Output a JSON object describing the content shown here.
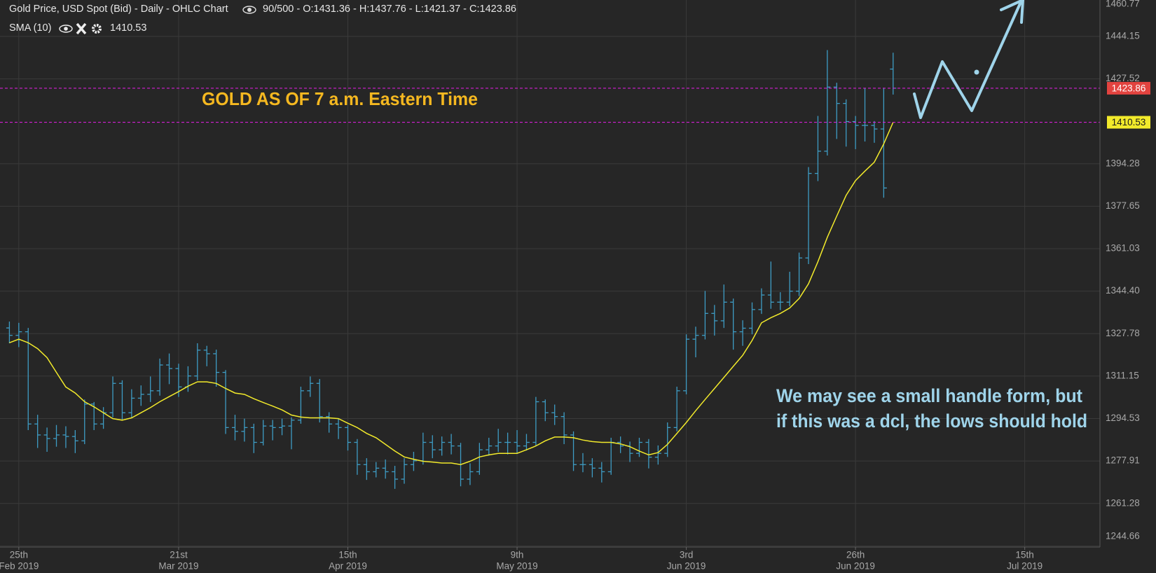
{
  "chart_data": {
    "type": "ohlc",
    "title": "Gold Price, USD Spot (Bid) - Daily - OHLC Chart",
    "info": "90/500 - O:1431.36 - H:1437.76 - L:1421.37 - C:1423.86",
    "color": "#3e9cc4",
    "open": [
      1330.0,
      1327.1,
      1328.5,
      1292.4,
      1288.1,
      1286.7,
      1288.1,
      1287.5,
      1285.8,
      1300.2,
      1292.4,
      1296.8,
      1308.3,
      1296.8,
      1302.5,
      1304.0,
      1305.4,
      1315.5,
      1314.1,
      1306.9,
      1311.2,
      1321.3,
      1319.9,
      1312.6,
      1291.0,
      1289.5,
      1291.0,
      1285.2,
      1291.6,
      1291.0,
      1291.6,
      1293.9,
      1305.4,
      1308.3,
      1295.3,
      1292.4,
      1291.0,
      1285.2,
      1276.5,
      1273.7,
      1275.1,
      1273.7,
      1270.8,
      1276.5,
      1278.0,
      1285.2,
      1282.3,
      1285.2,
      1283.8,
      1270.8,
      1273.7,
      1282.3,
      1283.8,
      1285.2,
      1285.2,
      1283.8,
      1285.2,
      1301.1,
      1296.8,
      1295.3,
      1288.1,
      1276.5,
      1276.5,
      1275.1,
      1273.7,
      1285.2,
      1283.8,
      1280.9,
      1285.2,
      1279.4,
      1280.9,
      1291.0,
      1305.4,
      1325.6,
      1327.1,
      1335.7,
      1332.8,
      1340.1,
      1328.5,
      1329.9,
      1337.2,
      1342.9,
      1340.1,
      1340.1,
      1344.4,
      1357.4,
      1390.5,
      1399.2,
      1424.3,
      1417.9,
      1410.8,
      1409.3,
      1409.3,
      1407.9,
      1431.36
    ],
    "high": [
      1332.5,
      1332.0,
      1330.0,
      1296.0,
      1291.0,
      1292.0,
      1291.5,
      1290.0,
      1302.0,
      1301.0,
      1299.0,
      1311.0,
      1309.5,
      1306.0,
      1307.5,
      1311.0,
      1318.0,
      1320.0,
      1316.0,
      1315.0,
      1324.0,
      1323.0,
      1321.5,
      1313.5,
      1296.0,
      1294.5,
      1292.5,
      1294.0,
      1294.0,
      1294.5,
      1295.0,
      1307.0,
      1311.0,
      1310.0,
      1297.0,
      1294.5,
      1292.0,
      1286.5,
      1279.0,
      1277.5,
      1278.5,
      1276.0,
      1279.0,
      1281.5,
      1289.0,
      1288.0,
      1287.5,
      1288.5,
      1285.0,
      1277.0,
      1285.0,
      1287.0,
      1290.5,
      1289.0,
      1290.0,
      1288.5,
      1303.0,
      1302.0,
      1300.0,
      1297.0,
      1289.5,
      1281.0,
      1279.0,
      1277.5,
      1287.0,
      1287.5,
      1285.5,
      1287.0,
      1286.5,
      1284.0,
      1293.0,
      1307.0,
      1327.5,
      1330.5,
      1344.5,
      1339.0,
      1347.0,
      1341.5,
      1333.0,
      1340.0,
      1345.5,
      1356.0,
      1344.0,
      1352.0,
      1359.5,
      1393.0,
      1413.0,
      1438.8,
      1426.0,
      1419.5,
      1413.0,
      1424.0,
      1411.0,
      1424.0,
      1437.76
    ],
    "low": [
      1324.0,
      1322.5,
      1290.0,
      1283.0,
      1281.5,
      1283.5,
      1283.0,
      1281.0,
      1284.5,
      1290.0,
      1290.5,
      1295.0,
      1294.0,
      1295.0,
      1299.5,
      1301.0,
      1303.5,
      1308.0,
      1303.0,
      1305.0,
      1309.5,
      1315.0,
      1307.0,
      1288.5,
      1286.0,
      1285.5,
      1281.0,
      1284.0,
      1286.0,
      1288.0,
      1282.5,
      1292.5,
      1303.0,
      1293.0,
      1289.0,
      1286.5,
      1282.0,
      1272.5,
      1270.5,
      1271.5,
      1271.0,
      1267.0,
      1269.0,
      1274.0,
      1276.5,
      1279.0,
      1280.0,
      1280.5,
      1268.0,
      1268.5,
      1272.5,
      1280.0,
      1281.5,
      1280.5,
      1281.0,
      1282.0,
      1284.0,
      1293.5,
      1292.0,
      1284.5,
      1274.0,
      1273.5,
      1271.5,
      1269.5,
      1272.5,
      1281.0,
      1277.5,
      1279.5,
      1275.0,
      1276.5,
      1279.5,
      1289.5,
      1304.0,
      1318.5,
      1325.5,
      1327.0,
      1330.0,
      1321.5,
      1323.0,
      1327.5,
      1335.5,
      1337.5,
      1337.0,
      1338.5,
      1342.5,
      1355.0,
      1387.5,
      1397.5,
      1404.0,
      1401.0,
      1400.0,
      1403.0,
      1402.5,
      1381.0,
      1421.37
    ],
    "close": [
      1327.1,
      1328.5,
      1292.4,
      1288.1,
      1286.7,
      1288.1,
      1287.5,
      1285.8,
      1300.2,
      1292.4,
      1296.8,
      1308.3,
      1296.8,
      1302.5,
      1304.0,
      1305.4,
      1315.5,
      1314.1,
      1306.9,
      1311.2,
      1321.3,
      1319.9,
      1312.6,
      1291.0,
      1289.5,
      1291.0,
      1285.2,
      1291.6,
      1291.0,
      1291.6,
      1293.9,
      1305.4,
      1308.3,
      1295.3,
      1292.4,
      1291.0,
      1285.2,
      1276.5,
      1273.7,
      1275.1,
      1273.7,
      1270.8,
      1276.5,
      1278.0,
      1285.2,
      1282.3,
      1285.2,
      1283.8,
      1270.8,
      1273.7,
      1282.3,
      1283.8,
      1285.2,
      1285.2,
      1283.8,
      1285.2,
      1301.1,
      1296.8,
      1295.3,
      1288.1,
      1276.5,
      1276.5,
      1275.1,
      1273.7,
      1285.2,
      1283.8,
      1280.9,
      1285.2,
      1279.4,
      1280.9,
      1291.0,
      1305.4,
      1325.6,
      1327.1,
      1335.7,
      1332.8,
      1340.1,
      1328.5,
      1329.9,
      1337.2,
      1342.9,
      1340.1,
      1340.1,
      1344.4,
      1357.4,
      1390.5,
      1399.2,
      1424.3,
      1417.9,
      1410.8,
      1409.3,
      1409.3,
      1407.9,
      1384.8,
      1423.86
    ],
    "sma": {
      "name": "SMA (10)",
      "color": "#f2ea2b",
      "values": [
        1324.2,
        1325.6,
        1324.2,
        1321.9,
        1318.4,
        1312.6,
        1306.9,
        1304.5,
        1301.1,
        1299.1,
        1296.8,
        1294.5,
        1293.9,
        1294.8,
        1296.8,
        1298.8,
        1301.1,
        1303.1,
        1305.1,
        1307.2,
        1308.9,
        1308.9,
        1308.3,
        1306.3,
        1304.5,
        1304.0,
        1302.3,
        1300.8,
        1299.4,
        1297.9,
        1295.9,
        1295.1,
        1294.8,
        1294.8,
        1294.8,
        1294.5,
        1292.7,
        1291.0,
        1288.7,
        1287.0,
        1284.4,
        1281.8,
        1279.5,
        1278.6,
        1277.8,
        1277.5,
        1277.1,
        1277.1,
        1276.5,
        1277.8,
        1279.5,
        1280.3,
        1280.9,
        1280.9,
        1280.9,
        1282.3,
        1283.8,
        1285.8,
        1287.3,
        1287.3,
        1287.0,
        1286.1,
        1285.5,
        1285.2,
        1285.2,
        1284.6,
        1283.5,
        1281.8,
        1280.3,
        1281.2,
        1284.4,
        1288.7,
        1293.0,
        1297.6,
        1302.0,
        1306.3,
        1310.6,
        1315.0,
        1319.3,
        1325.1,
        1332.0,
        1334.0,
        1335.7,
        1337.8,
        1341.5,
        1347.3,
        1355.9,
        1365.5,
        1373.8,
        1381.9,
        1387.7,
        1391.4,
        1394.9,
        1402.1,
        1410.53
      ]
    },
    "price_lines": [
      {
        "value": 1423.86,
        "label": "1423.86",
        "color": "#e2433f"
      },
      {
        "value": 1410.53,
        "label": "1410.53",
        "color": "#f2ea2b"
      }
    ],
    "ylim": [
      1244.2,
      1458.4
    ],
    "yticks": [
      1460.77,
      1444.15,
      1427.52,
      1394.28,
      1377.65,
      1361.03,
      {
        "value": 1344.4,
        "label": "1344.40"
      },
      1327.78,
      1311.15,
      1294.53,
      1277.91,
      1261.28,
      1244.66
    ],
    "xlim": [
      -1,
      116
    ],
    "xticks": [
      {
        "value": 1,
        "label": "25th",
        "sublabel": "Feb 2019"
      },
      {
        "value": 18,
        "label": "21st",
        "sublabel": "Mar 2019"
      },
      {
        "value": 36,
        "label": "15th",
        "sublabel": "Apr 2019"
      },
      {
        "value": 54,
        "label": "9th",
        "sublabel": "May 2019"
      },
      {
        "value": 72,
        "label": "3rd",
        "sublabel": "Jun 2019"
      },
      {
        "value": 90,
        "label": "26th",
        "sublabel": "Jun 2019"
      },
      {
        "value": 108,
        "label": "15th",
        "sublabel": "Jul 2019"
      }
    ],
    "grid": true,
    "annotations": [
      "GOLD AS OF 7 a.m. Eastern Time",
      "We may see a small handle form, but",
      "if this was a dcl, the lows should hold"
    ]
  }
}
